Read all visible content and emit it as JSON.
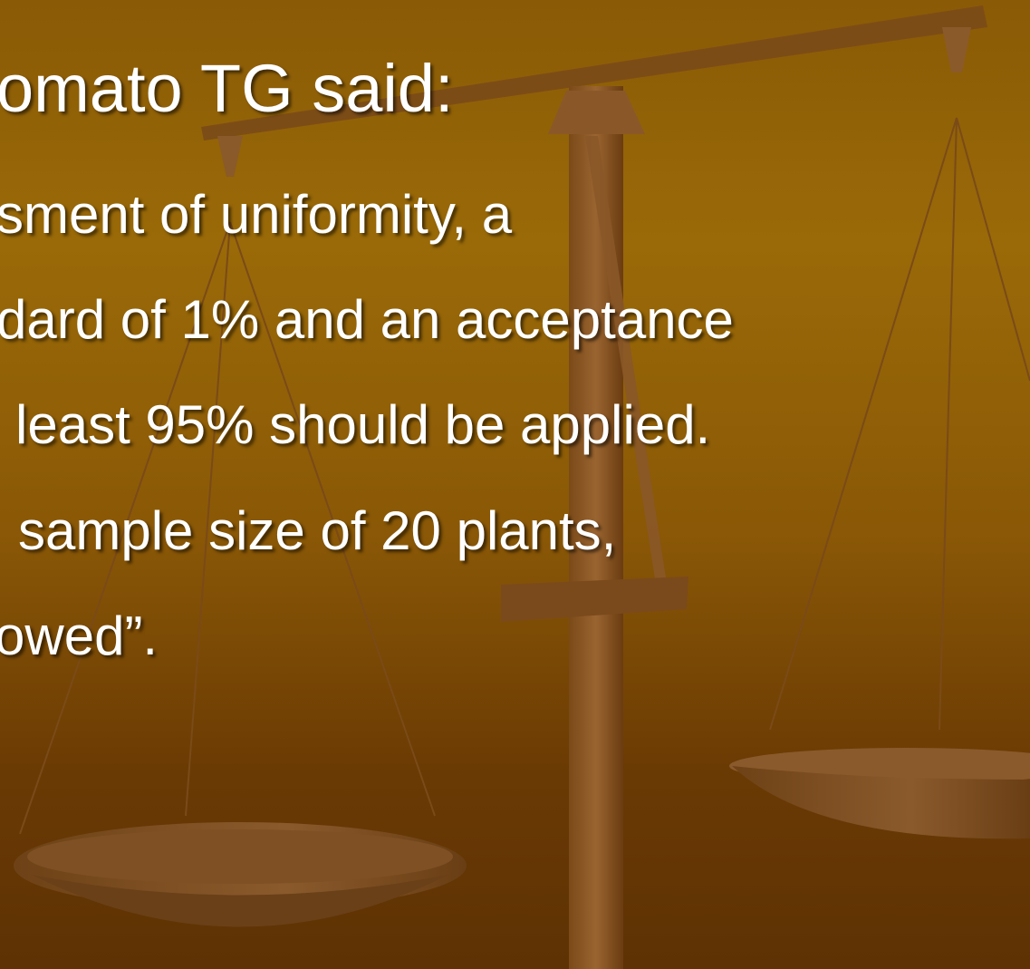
{
  "slide": {
    "title": "omato TG said:",
    "lines": [
      "sment of uniformity, a",
      "dard of 1% and an acceptance",
      "least 95% should be applied.",
      "sample size of 20 plants,",
      "owed”."
    ]
  }
}
